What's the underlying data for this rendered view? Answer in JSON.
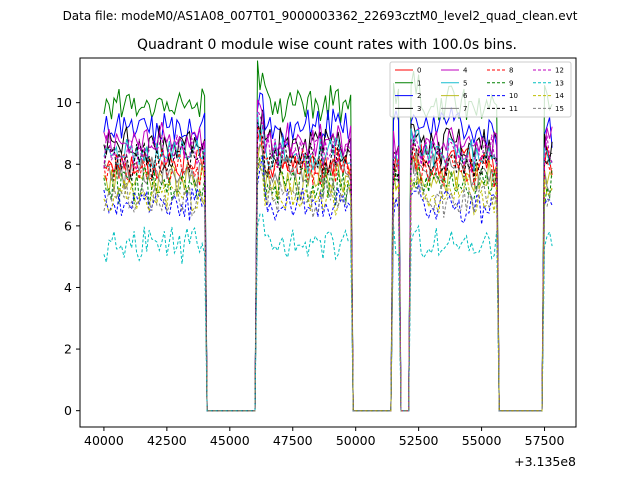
{
  "suptitle": "Data file: modeM0/AS1A08_007T01_9000003362_22693cztM0_level2_quad_clean.evt",
  "chart_data": {
    "type": "line",
    "title": "Quadrant 0 module wise count rates with 100.0s bins.",
    "xlabel": "",
    "ylabel": "",
    "x_offset_label": "+3.135e8",
    "xlim": [
      39050,
      58750
    ],
    "ylim": [
      -0.53,
      11.45
    ],
    "x_ticks": [
      40000,
      42500,
      45000,
      47500,
      50000,
      52500,
      55000,
      57500
    ],
    "x_tick_labels": [
      "40000",
      "42500",
      "45000",
      "47500",
      "50000",
      "52500",
      "55000",
      "57500"
    ],
    "y_ticks": [
      0,
      2,
      4,
      6,
      8,
      10
    ],
    "y_tick_labels": [
      "0",
      "2",
      "4",
      "6",
      "8",
      "10"
    ],
    "grid": false,
    "legend_position": "top-right",
    "bin_seconds": 100,
    "segments": [
      {
        "start": 40000,
        "end": 44000
      },
      {
        "start": 46100,
        "end": 49800
      },
      {
        "start": 51500,
        "end": 51700
      },
      {
        "start": 52200,
        "end": 55600
      },
      {
        "start": 57500,
        "end": 57800
      }
    ],
    "gap_value": 0,
    "series": [
      {
        "name": "0",
        "color": "#ff0000",
        "dash": "solid",
        "level": 8.0
      },
      {
        "name": "1",
        "color": "#008000",
        "dash": "solid",
        "level": 10.0
      },
      {
        "name": "2",
        "color": "#0000ff",
        "dash": "solid",
        "level": 9.2
      },
      {
        "name": "3",
        "color": "#000000",
        "dash": "solid",
        "level": 8.6
      },
      {
        "name": "4",
        "color": "#bf00bf",
        "dash": "solid",
        "level": 8.8
      },
      {
        "name": "5",
        "color": "#17becf",
        "dash": "solid",
        "level": 8.3
      },
      {
        "name": "6",
        "color": "#bcbd22",
        "dash": "solid",
        "level": 7.5
      },
      {
        "name": "7",
        "color": "#7f7f7f",
        "dash": "solid",
        "level": 7.7
      },
      {
        "name": "8",
        "color": "#ff0000",
        "dash": "dashed",
        "level": 7.9
      },
      {
        "name": "9",
        "color": "#008000",
        "dash": "dashed",
        "level": 7.3
      },
      {
        "name": "10",
        "color": "#0000ff",
        "dash": "dashed",
        "level": 6.7
      },
      {
        "name": "11",
        "color": "#000000",
        "dash": "dashed",
        "level": 8.1
      },
      {
        "name": "12",
        "color": "#bf00bf",
        "dash": "dashed",
        "level": 8.4
      },
      {
        "name": "13",
        "color": "#00bfbf",
        "dash": "dashed",
        "level": 5.4
      },
      {
        "name": "14",
        "color": "#bfbf00",
        "dash": "dashed",
        "level": 7.0
      },
      {
        "name": "15",
        "color": "#7f7f7f",
        "dash": "dashed",
        "level": 6.9
      }
    ]
  }
}
